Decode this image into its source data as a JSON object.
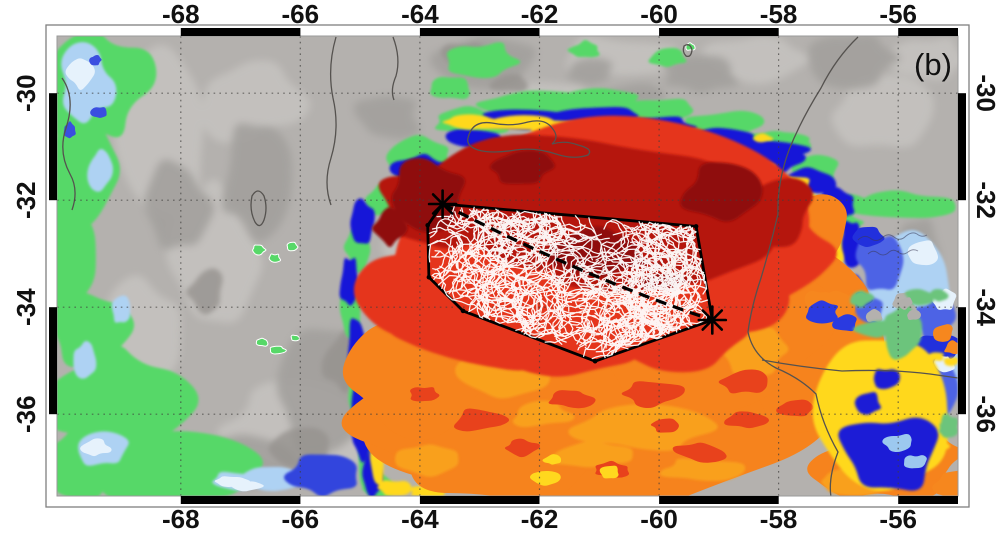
{
  "figure": {
    "panel_label": "(b)",
    "type": "satellite-ir-brightness-temperature-map"
  },
  "axes": {
    "top_ticks": [
      "-68",
      "-66",
      "-64",
      "-62",
      "-60",
      "-58",
      "-56"
    ],
    "bottom_ticks": [
      "-68",
      "-66",
      "-64",
      "-62",
      "-60",
      "-58",
      "-56"
    ],
    "left_ticks": [
      "-30",
      "-32",
      "-34",
      "-36"
    ],
    "right_ticks": [
      "-30",
      "-32",
      "-34",
      "-36"
    ],
    "lon_tick_values": [
      -68,
      -66,
      -64,
      -62,
      -60,
      -58,
      -56
    ],
    "lat_tick_values": [
      -30,
      -32,
      -34,
      -36
    ],
    "lon_range": [
      -70.07,
      -55.0
    ],
    "lat_range": [
      -28.93,
      -37.53
    ],
    "grid_style": "dotted",
    "frame_style": "alternating-black-white-checker"
  },
  "overlay": {
    "flash_hull_lonlat": [
      [
        -63.62,
        -32.07
      ],
      [
        -59.38,
        -32.49
      ],
      [
        -59.11,
        -34.24
      ],
      [
        -61.07,
        -35.01
      ],
      [
        -63.28,
        -34.07
      ],
      [
        -63.85,
        -33.44
      ],
      [
        -63.87,
        -32.47
      ]
    ],
    "asterisks_lonlat": [
      [
        -63.62,
        -32.07
      ],
      [
        -59.11,
        -34.24
      ]
    ],
    "dashed_track_lonlat": [
      [
        -63.62,
        -32.07
      ],
      [
        -59.11,
        -34.24
      ]
    ],
    "hull_color": "#000000",
    "track_color": "#000000",
    "asterisk_color": "#000000",
    "lightning_color": "#ffffff"
  },
  "palette": {
    "background_gray": "#b4b1ae",
    "terrain_light": "#c5c2bf",
    "terrain_dark": "#a3a09d",
    "cloud_green": "#57d868",
    "cloud_light_blue": "#aed2f3",
    "cloud_pale": "#e6f2fc",
    "cloud_blue_rim": "#1717d8",
    "cloud_yellow": "#ffd81e",
    "cloud_orange": "#f6831d",
    "cloud_orange_light": "#f9a01f",
    "cloud_red": "#e5341c",
    "cloud_dark_red": "#b5150f",
    "cloud_maroon": "#8f0d0b",
    "frame_black": "#000000",
    "label_color": "#111111"
  }
}
